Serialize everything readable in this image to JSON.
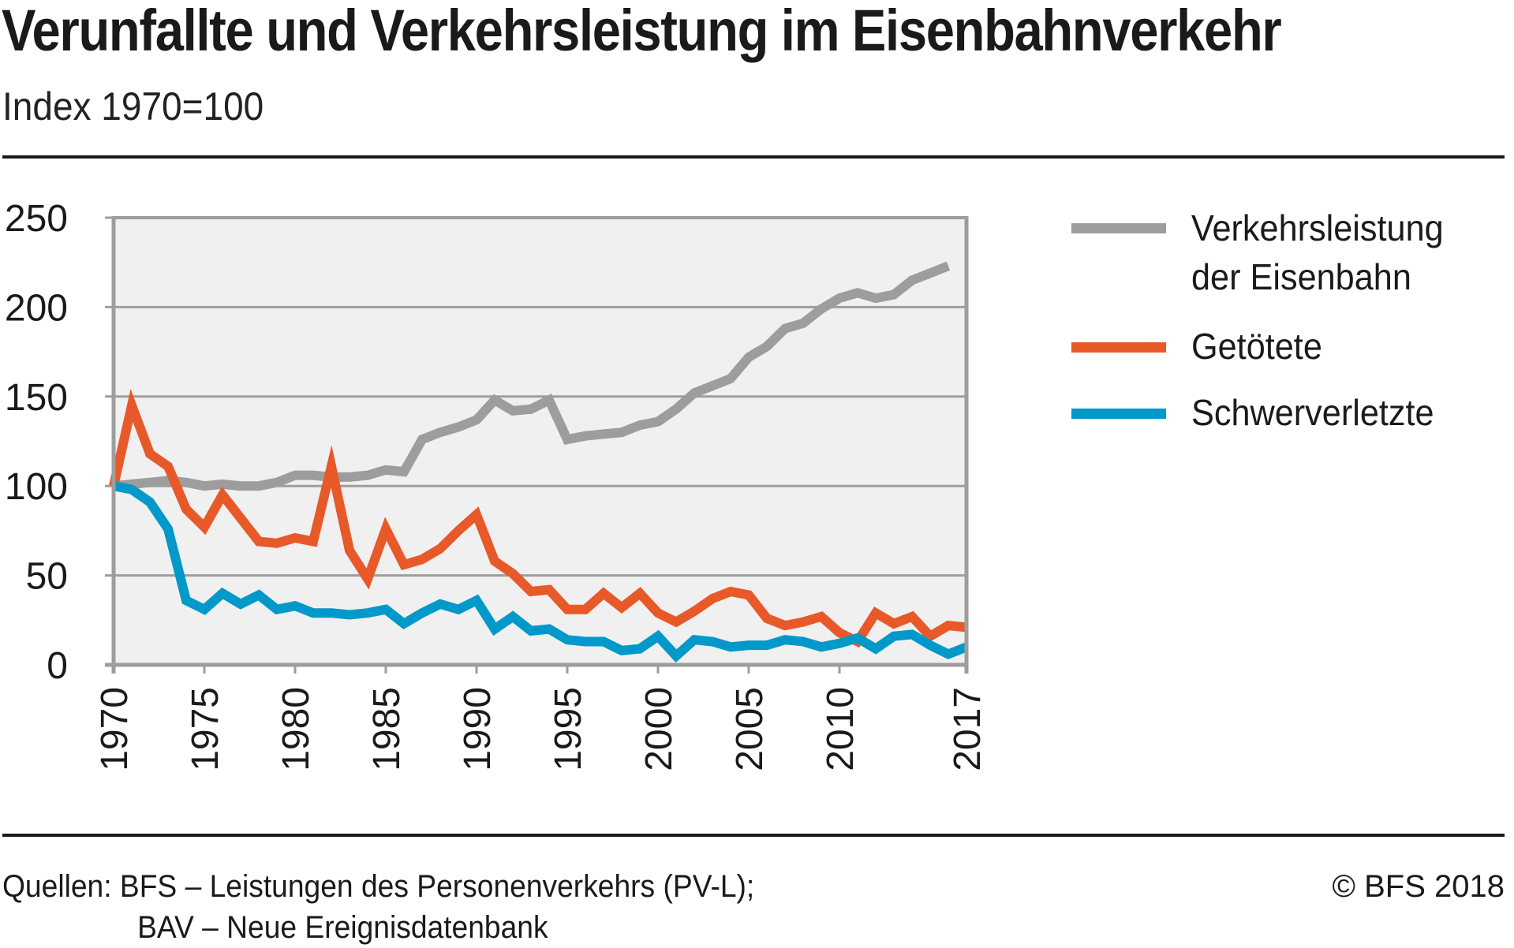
{
  "header": {
    "title": "Verunfallte und Verkehrsleistung im Eisenbahnverkehr",
    "subtitle": "Index 1970=100"
  },
  "legend": [
    {
      "label_line1": "Verkehrsleistung",
      "label_line2": "der Eisenbahn",
      "color": "#9d9d9d"
    },
    {
      "label_line1": "Getötete",
      "label_line2": "",
      "color": "#e8592a"
    },
    {
      "label_line1": "Schwerverletzte",
      "label_line2": "",
      "color": "#0099c9"
    }
  ],
  "footer": {
    "source_line1": "Quellen: BFS – Leistungen des Personenverkehrs (PV-L);",
    "source_line2": "BAV – Neue Ereignisdatenbank",
    "copyright": "© BFS 2018"
  },
  "chart_data": {
    "type": "line",
    "title": "Verunfallte und Verkehrsleistung im Eisenbahnverkehr",
    "subtitle": "Index 1970=100",
    "xlabel": "",
    "ylabel": "",
    "x": [
      1970,
      1971,
      1972,
      1973,
      1974,
      1975,
      1976,
      1977,
      1978,
      1979,
      1980,
      1981,
      1982,
      1983,
      1984,
      1985,
      1986,
      1987,
      1988,
      1989,
      1990,
      1991,
      1992,
      1993,
      1994,
      1995,
      1996,
      1997,
      1998,
      1999,
      2000,
      2001,
      2002,
      2003,
      2004,
      2005,
      2006,
      2007,
      2008,
      2009,
      2010,
      2011,
      2012,
      2013,
      2014,
      2015,
      2016,
      2017
    ],
    "xlim": [
      1970,
      2017
    ],
    "ylim": [
      0,
      250
    ],
    "x_ticks": [
      "1970",
      "1975",
      "1980",
      "1985",
      "1990",
      "1995",
      "2000",
      "2005",
      "2010",
      "2017"
    ],
    "x_tick_values": [
      1970,
      1975,
      1980,
      1985,
      1990,
      1995,
      2000,
      2005,
      2010,
      2017
    ],
    "y_ticks": [
      "0",
      "50",
      "100",
      "150",
      "200",
      "250"
    ],
    "y_tick_values": [
      0,
      50,
      100,
      150,
      200,
      250
    ],
    "grid": true,
    "legend_position": "right",
    "plot_background": "#f0f0f0",
    "axis_color": "#9d9d9d",
    "series": [
      {
        "name": "Verkehrsleistung der Eisenbahn",
        "color": "#9d9d9d",
        "values": [
          100,
          101,
          102,
          103,
          102,
          100,
          101,
          100,
          100,
          102,
          106,
          106,
          105,
          105,
          106,
          109,
          108,
          126,
          130,
          133,
          137,
          148,
          142,
          143,
          148,
          126,
          128,
          129,
          130,
          134,
          136,
          143,
          152,
          156,
          160,
          172,
          178,
          188,
          191,
          199,
          205,
          208,
          205,
          207,
          215,
          219,
          223,
          null
        ]
      },
      {
        "name": "Getötete",
        "color": "#e8592a",
        "values": [
          100,
          145,
          118,
          111,
          87,
          77,
          95,
          82,
          69,
          68,
          71,
          69,
          111,
          64,
          48,
          76,
          56,
          59,
          65,
          75,
          84,
          58,
          51,
          41,
          42,
          31,
          31,
          40,
          32,
          40,
          29,
          24,
          30,
          37,
          41,
          39,
          26,
          22,
          24,
          27,
          18,
          13,
          29,
          23,
          27,
          16,
          22,
          21
        ]
      },
      {
        "name": "Schwerverletzte",
        "color": "#0099c9",
        "values": [
          100,
          98,
          91,
          76,
          36,
          31,
          40,
          34,
          39,
          31,
          33,
          29,
          29,
          28,
          29,
          31,
          23,
          29,
          34,
          31,
          36,
          20,
          27,
          19,
          20,
          14,
          13,
          13,
          8,
          9,
          16,
          5,
          14,
          13,
          10,
          11,
          11,
          14,
          13,
          10,
          12,
          15,
          9,
          16,
          17,
          11,
          6,
          10
        ]
      }
    ]
  }
}
